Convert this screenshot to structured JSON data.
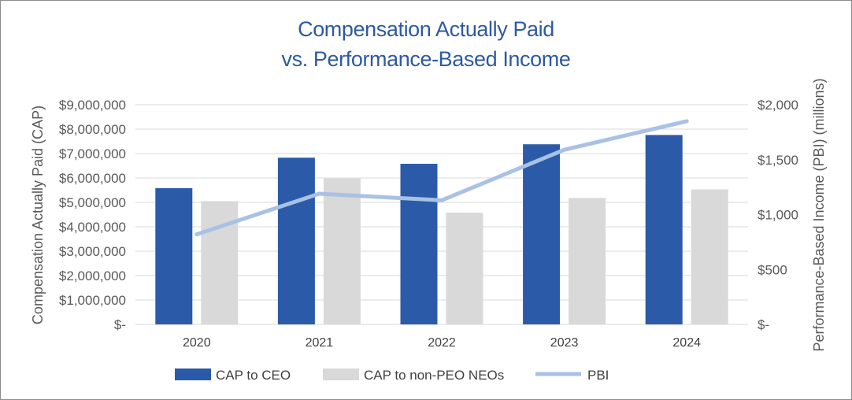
{
  "chart_data": {
    "type": "bar",
    "title_lines": [
      "Compensation Actually Paid",
      "vs. Performance-Based Income"
    ],
    "categories": [
      "2020",
      "2021",
      "2022",
      "2023",
      "2024"
    ],
    "series": [
      {
        "name": "CAP to CEO",
        "kind": "bar",
        "axis": "left",
        "color": "#2b5ba8",
        "values": [
          5580000,
          6830000,
          6580000,
          7380000,
          7760000
        ]
      },
      {
        "name": "CAP to non-PEO NEOs",
        "kind": "bar",
        "axis": "left",
        "color": "#d9d9d9",
        "values": [
          5050000,
          5980000,
          4580000,
          5180000,
          5530000
        ]
      },
      {
        "name": "PBI",
        "kind": "line",
        "axis": "right",
        "color": "#a9c1e5",
        "values": [
          820,
          1190,
          1130,
          1590,
          1850
        ]
      }
    ],
    "left_axis": {
      "label": "Compensation Actually Paid (CAP)",
      "min": 0,
      "max": 9000000,
      "ticks": [
        0,
        1000000,
        2000000,
        3000000,
        4000000,
        5000000,
        6000000,
        7000000,
        8000000,
        9000000
      ],
      "tick_labels": [
        "$-",
        "$1,000,000",
        "$2,000,000",
        "$3,000,000",
        "$4,000,000",
        "$5,000,000",
        "$6,000,000",
        "$7,000,000",
        "$8,000,000",
        "$9,000,000"
      ]
    },
    "right_axis": {
      "label": "Performance-Based Income (PBI) (millions)",
      "min": 0,
      "max": 2000,
      "ticks": [
        0,
        500,
        1000,
        1500,
        2000
      ],
      "tick_labels": [
        "$-",
        "$500",
        "$1,000",
        "$1,500",
        "$2,000"
      ]
    },
    "grid": true,
    "legend_position": "bottom",
    "gridline_color": "#d9d9d9"
  }
}
